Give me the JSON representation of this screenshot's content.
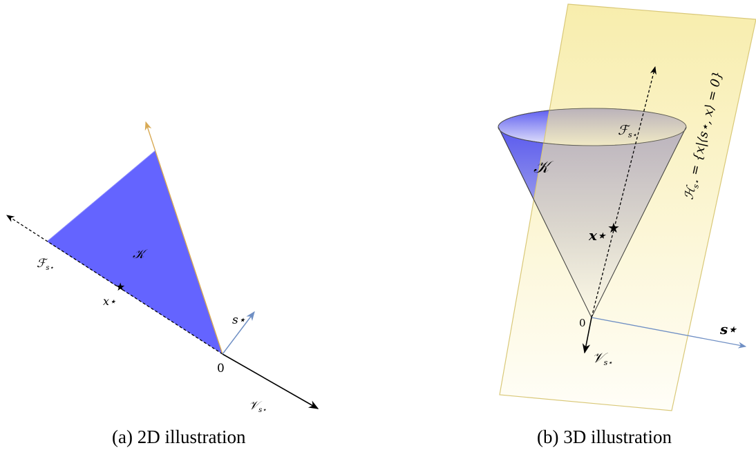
{
  "panel_a": {
    "caption": "(a) 2D illustration",
    "labels": {
      "cone": "𝒦",
      "face": "ℱ",
      "face_sub": "s⋆",
      "point": "x⋆",
      "star": "★",
      "origin": "0",
      "normal": "s⋆",
      "v": "𝒱",
      "v_sub": "s⋆"
    },
    "colors": {
      "cone_fill": "#6464ff",
      "cone_edge": "#d8aa55",
      "normal": "#6f8fc4"
    }
  },
  "panel_b": {
    "caption": "(b) 3D illustration",
    "labels": {
      "cone": "𝒦",
      "face": "ℱ",
      "face_sub": "s⋆",
      "point": "x⋆",
      "star": "★",
      "origin": "0",
      "normal": "s⋆",
      "v": "𝒱",
      "v_sub": "s⋆",
      "plane": "ℋ",
      "plane_sub": "s⋆",
      "plane_eq": " = {x|⟨s⋆, x⟩ = 0}"
    },
    "colors": {
      "plane_fill": "#f5e58a",
      "plane_edge": "#d9c878",
      "cone_fill": "#5c5cf0",
      "normal": "#6f8fc4"
    }
  }
}
